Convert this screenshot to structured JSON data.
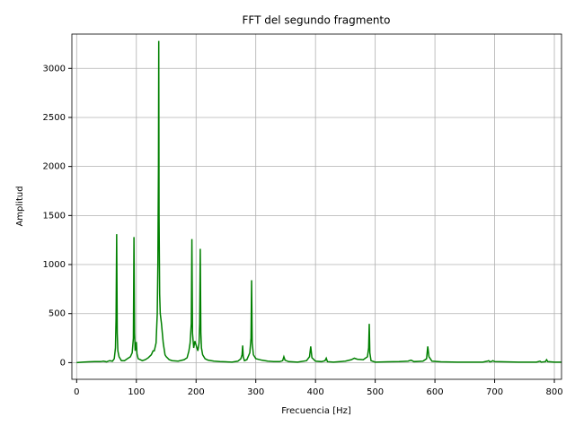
{
  "chart_data": {
    "type": "line",
    "title": "FFT del segundo fragmento",
    "x_label": "Frecuencia [Hz]",
    "y_label": "Amplitud",
    "xlim": [
      -8,
      812
    ],
    "ylim": [
      -170,
      3350
    ],
    "xticks": [
      0,
      100,
      200,
      300,
      400,
      500,
      600,
      700,
      800
    ],
    "yticks": [
      0,
      500,
      1000,
      1500,
      2000,
      2500,
      3000
    ],
    "grid": true,
    "color": "#008000",
    "x": [
      0,
      10,
      20,
      30,
      40,
      45,
      50,
      55,
      60,
      63,
      65,
      66,
      67,
      68,
      69,
      71,
      75,
      80,
      85,
      90,
      93,
      95,
      96,
      97,
      98,
      99,
      100,
      101,
      103,
      110,
      115,
      120,
      125,
      128,
      130,
      133,
      135,
      136,
      137,
      137.5,
      138,
      139,
      140,
      142,
      145,
      148,
      150,
      155,
      160,
      170,
      180,
      185,
      188,
      190,
      192,
      193,
      194,
      196,
      198,
      200,
      203,
      205,
      206,
      207,
      208,
      209,
      211,
      215,
      220,
      230,
      240,
      250,
      260,
      270,
      275,
      277,
      278,
      279,
      281,
      285,
      290,
      292,
      293,
      294,
      296,
      300,
      310,
      320,
      330,
      340,
      345,
      347,
      349,
      355,
      370,
      385,
      390,
      392,
      394,
      400,
      410,
      416,
      418,
      420,
      430,
      450,
      460,
      465,
      470,
      480,
      487,
      489,
      490,
      491,
      493,
      500,
      520,
      540,
      555,
      560,
      565,
      580,
      586,
      588,
      590,
      595,
      610,
      640,
      680,
      688,
      690,
      692,
      695,
      697,
      700,
      740,
      770,
      776,
      778,
      785,
      787,
      789,
      800,
      812
    ],
    "values": [
      0,
      5,
      8,
      10,
      10,
      15,
      8,
      20,
      15,
      40,
      150,
      450,
      1310,
      300,
      120,
      60,
      20,
      20,
      40,
      60,
      100,
      250,
      1280,
      300,
      120,
      180,
      210,
      90,
      40,
      20,
      30,
      50,
      80,
      120,
      120,
      200,
      500,
      1000,
      2000,
      3280,
      1500,
      700,
      500,
      400,
      200,
      80,
      60,
      30,
      20,
      15,
      30,
      50,
      120,
      200,
      400,
      1260,
      300,
      150,
      220,
      180,
      120,
      200,
      400,
      1160,
      300,
      150,
      80,
      40,
      25,
      15,
      10,
      8,
      5,
      15,
      40,
      80,
      175,
      60,
      20,
      30,
      100,
      250,
      840,
      200,
      80,
      40,
      25,
      15,
      10,
      10,
      20,
      60,
      25,
      10,
      5,
      20,
      60,
      165,
      50,
      15,
      10,
      20,
      45,
      10,
      5,
      15,
      30,
      45,
      35,
      30,
      60,
      150,
      395,
      100,
      20,
      5,
      8,
      10,
      15,
      25,
      10,
      15,
      40,
      165,
      60,
      15,
      8,
      5,
      5,
      15,
      20,
      8,
      12,
      20,
      10,
      5,
      5,
      15,
      5,
      10,
      30,
      10,
      5,
      5
    ]
  }
}
